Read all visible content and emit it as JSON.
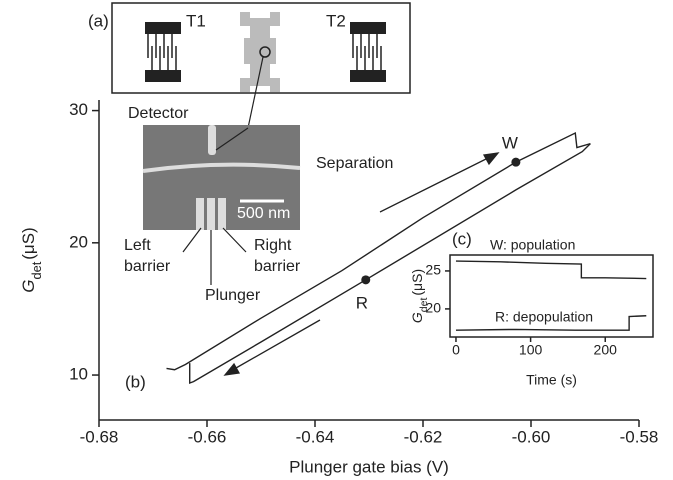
{
  "chart_data": [
    {
      "type": "line",
      "panel_label": "(b)",
      "xlabel": "Plunger gate bias (V)",
      "ylabel": {
        "main": "G",
        "sub": "det",
        "unit": "(μS)"
      },
      "xlim": [
        -0.68,
        -0.58
      ],
      "ylim": [
        6.6,
        30.8
      ],
      "xticks": [
        -0.68,
        -0.66,
        -0.64,
        -0.62,
        -0.6,
        -0.58
      ],
      "yticks": [
        10,
        20,
        30
      ],
      "xtick_labels": [
        "-0.68",
        "-0.66",
        "-0.64",
        "-0.62",
        "-0.60",
        "-0.58"
      ],
      "series": [
        {
          "color": "#222222",
          "x": [
            -0.6675,
            -0.666,
            -0.664,
            -0.65,
            -0.635,
            -0.62,
            -0.6028,
            -0.5918,
            -0.5915,
            -0.589
          ],
          "values": [
            10.5,
            10.4,
            10.8,
            14.3,
            17.9,
            21.9,
            26.1,
            28.3,
            27.2,
            27.5
          ]
        },
        {
          "color": "#222222",
          "x": [
            -0.589,
            -0.5905,
            -0.6028,
            -0.6306,
            -0.65,
            -0.6625,
            -0.6632,
            -0.6632
          ],
          "values": [
            27.5,
            26.9,
            24.0,
            17.2,
            12.5,
            9.5,
            9.4,
            10.9
          ]
        }
      ],
      "points": [
        {
          "label": "W",
          "x": -0.6028,
          "y": 26.1
        },
        {
          "label": "R",
          "x": -0.6306,
          "y": 17.2
        }
      ]
    },
    {
      "type": "line",
      "panel_label": "(c)",
      "xlabel": "Time (s)",
      "ylabel": {
        "main": "G",
        "sub": "det",
        "unit": "(μS)"
      },
      "xlim": [
        -8,
        264
      ],
      "ylim": [
        16.3,
        27.1
      ],
      "xticks": [
        0,
        100,
        200
      ],
      "yticks": [
        20,
        25
      ],
      "series": [
        {
          "name": "W: population",
          "color": "#222222",
          "x": [
            0,
            60,
            120,
            168,
            168,
            200,
            255
          ],
          "values": [
            26.3,
            26.2,
            26.0,
            25.9,
            24.1,
            24.1,
            24.0
          ]
        },
        {
          "name": "R: depopulation",
          "color": "#222222",
          "x": [
            0,
            80,
            160,
            232,
            232,
            255
          ],
          "values": [
            17.2,
            17.3,
            17.2,
            17.2,
            19.0,
            19.1
          ]
        }
      ]
    }
  ],
  "schematic": {
    "panel_label": "(a)",
    "left_terminal": "T1",
    "right_terminal": "T2"
  },
  "sem": {
    "detector": "Detector",
    "separation": "Separation",
    "scale_bar": "500 nm",
    "left_barrier": [
      "Left",
      "barrier"
    ],
    "right_barrier": [
      "Right",
      "barrier"
    ],
    "plunger": "Plunger"
  }
}
